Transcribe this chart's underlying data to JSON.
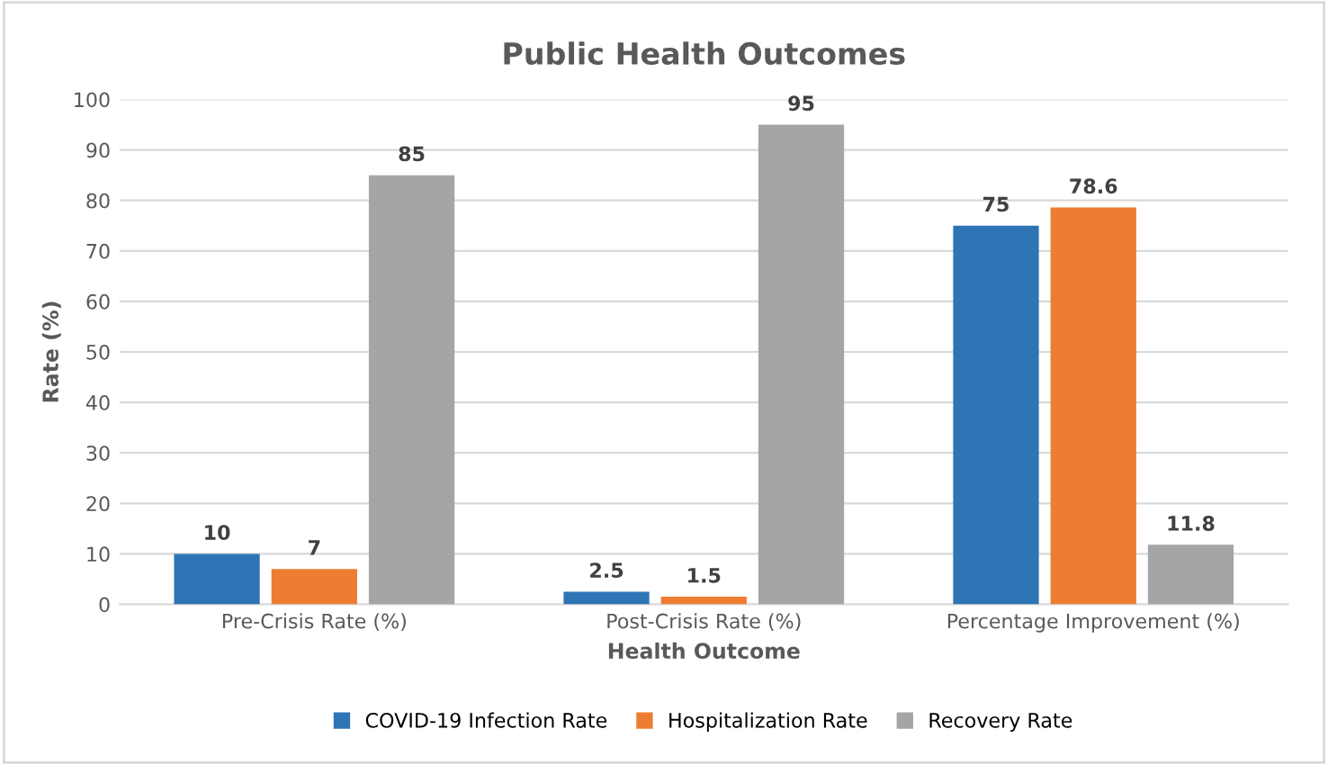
{
  "chart_data": {
    "type": "bar",
    "title": "Public Health Outcomes",
    "xlabel": "Health Outcome",
    "ylabel": "Rate (%)",
    "categories": [
      "Pre-Crisis Rate (%)",
      "Post-Crisis Rate (%)",
      "Percentage Improvement (%)"
    ],
    "series": [
      {
        "name": "COVID-19 Infection Rate",
        "color": "#2e75b6",
        "values": [
          10,
          2.5,
          75
        ]
      },
      {
        "name": "Hospitalization Rate",
        "color": "#ed7d31",
        "values": [
          7,
          1.5,
          78.6
        ]
      },
      {
        "name": "Recovery Rate",
        "color": "#a5a5a5",
        "values": [
          85,
          95,
          11.8
        ]
      }
    ],
    "ylim": [
      0,
      100
    ],
    "yticks": [
      0,
      10,
      20,
      30,
      40,
      50,
      60,
      70,
      80,
      90,
      100
    ],
    "grid": "y",
    "legend": "bottom",
    "data_labels": true
  }
}
